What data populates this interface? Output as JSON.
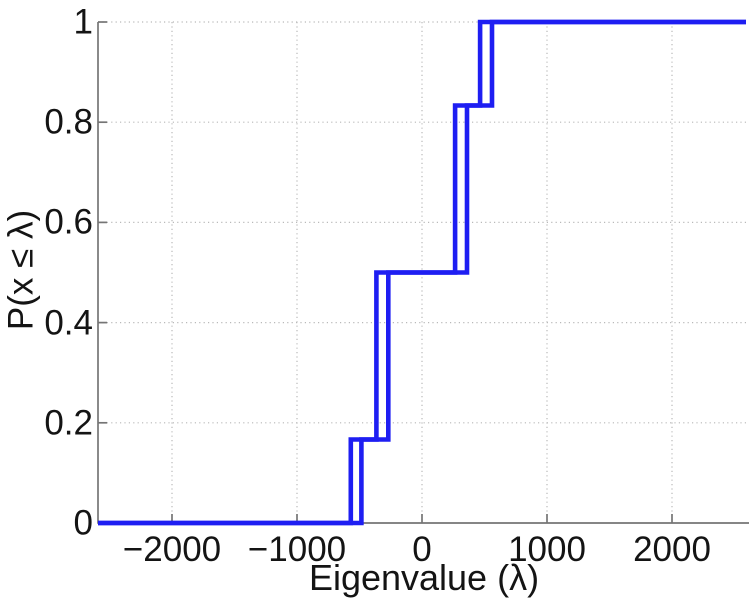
{
  "chart_data": {
    "type": "line",
    "subtype": "empirical-cdf-step",
    "title": "",
    "xlabel": "Eigenvalue (λ)",
    "ylabel": "P(x ≤ λ)",
    "xlim": [
      -2592,
      2592
    ],
    "ylim": [
      0,
      1
    ],
    "grid": true,
    "legend": "none",
    "x_ticks": [
      {
        "v": -2000,
        "label": "−2000"
      },
      {
        "v": -1000,
        "label": "−1000"
      },
      {
        "v": 0,
        "label": "0"
      },
      {
        "v": 1000,
        "label": "1000"
      },
      {
        "v": 2000,
        "label": "2000"
      }
    ],
    "y_ticks": [
      {
        "v": 0,
        "label": "0"
      },
      {
        "v": 0.2,
        "label": "0.2"
      },
      {
        "v": 0.4,
        "label": "0.4"
      },
      {
        "v": 0.6,
        "label": "0.6"
      },
      {
        "v": 0.8,
        "label": "0.8"
      },
      {
        "v": 1,
        "label": "1"
      }
    ],
    "cumulative_levels": [
      0,
      0.1667,
      0.5,
      0.8333,
      1
    ],
    "series": [
      {
        "name": "ecdf-curve-1",
        "n": 6,
        "eigenvalues": [
          -570,
          -365,
          -365,
          265,
          265,
          465
        ]
      },
      {
        "name": "ecdf-curve-2",
        "n": 6,
        "eigenvalues": [
          -485,
          -270,
          -270,
          360,
          360,
          560
        ]
      }
    ],
    "colors": {
      "curve": "#1e1ef2",
      "spine": "#757575",
      "grid": "#b9b9b9",
      "text": "#141414"
    }
  }
}
